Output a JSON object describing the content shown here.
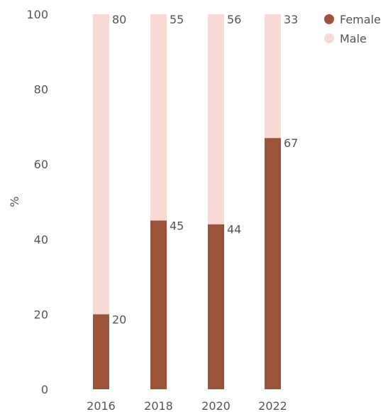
{
  "chart_data": {
    "type": "bar",
    "stacked": true,
    "categories": [
      "2016",
      "2018",
      "2020",
      "2022"
    ],
    "series": [
      {
        "name": "Female",
        "values": [
          20,
          45,
          44,
          67
        ],
        "color": "#9b5339"
      },
      {
        "name": "Male",
        "values": [
          80,
          55,
          56,
          33
        ],
        "color": "#f8d9d3"
      }
    ],
    "ylabel": "%",
    "ylim": [
      0,
      100
    ],
    "yticks": [
      0,
      20,
      40,
      60,
      80,
      100
    ],
    "grid": false,
    "legend": "top-right"
  }
}
